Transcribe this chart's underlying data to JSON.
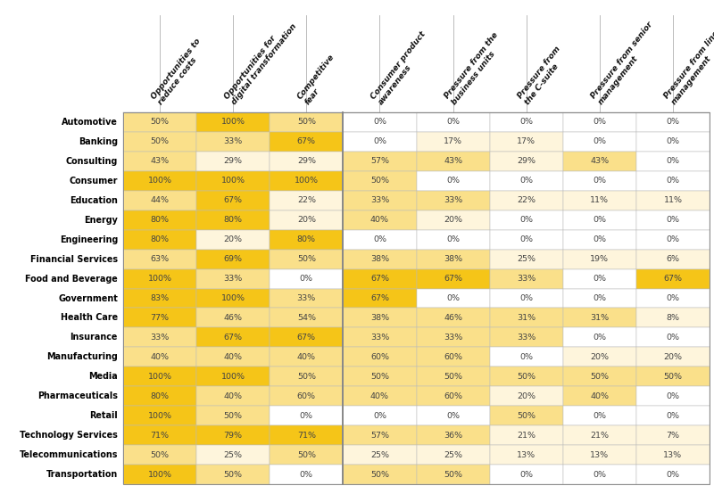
{
  "rows": [
    "Automotive",
    "Banking",
    "Consulting",
    "Consumer",
    "Education",
    "Energy",
    "Engineering",
    "Financial Services",
    "Food and Beverage",
    "Government",
    "Health Care",
    "Insurance",
    "Manufacturing",
    "Media",
    "Pharmaceuticals",
    "Retail",
    "Technology Services",
    "Telecommunications",
    "Transportation"
  ],
  "columns": [
    "Opportunities to\nreduce costs",
    "Opportunities for\ndigital transformation",
    "Competitive\nfear",
    "Consumer product\nawareness",
    "Pressure from the\nbusiness units",
    "Pressure from\nthe C-suite",
    "Pressure from senior\nmanagement",
    "Pressure from line\nmanagement"
  ],
  "values": [
    [
      50,
      100,
      50,
      0,
      0,
      0,
      0,
      0
    ],
    [
      50,
      33,
      67,
      0,
      17,
      17,
      0,
      0
    ],
    [
      43,
      29,
      29,
      57,
      43,
      29,
      43,
      0
    ],
    [
      100,
      100,
      100,
      50,
      0,
      0,
      0,
      0
    ],
    [
      44,
      67,
      22,
      33,
      33,
      22,
      11,
      11
    ],
    [
      80,
      80,
      20,
      40,
      20,
      0,
      0,
      0
    ],
    [
      80,
      20,
      80,
      0,
      0,
      0,
      0,
      0
    ],
    [
      63,
      69,
      50,
      38,
      38,
      25,
      19,
      6
    ],
    [
      100,
      33,
      0,
      67,
      67,
      33,
      0,
      67
    ],
    [
      83,
      100,
      33,
      67,
      0,
      0,
      0,
      0
    ],
    [
      77,
      46,
      54,
      38,
      46,
      31,
      31,
      8
    ],
    [
      33,
      67,
      67,
      33,
      33,
      33,
      0,
      0
    ],
    [
      40,
      40,
      40,
      60,
      60,
      0,
      20,
      20
    ],
    [
      100,
      100,
      50,
      50,
      50,
      50,
      50,
      50
    ],
    [
      80,
      40,
      60,
      40,
      60,
      20,
      40,
      0
    ],
    [
      100,
      50,
      0,
      0,
      0,
      50,
      0,
      0
    ],
    [
      71,
      79,
      71,
      57,
      36,
      21,
      21,
      7
    ],
    [
      50,
      25,
      50,
      25,
      25,
      13,
      13,
      13
    ],
    [
      100,
      50,
      0,
      50,
      50,
      0,
      0,
      0
    ]
  ],
  "high_threshold": 67,
  "mid_threshold": 30,
  "color_high": "#F5C518",
  "color_mid": "#FAE08A",
  "color_low": "#FEF5DC",
  "color_zero": "#FFFFFF",
  "border_color": "#BBBBBB",
  "sep_color": "#888888",
  "label_color": "#000000",
  "val_color": "#444444",
  "header_color": "#111111",
  "fig_width": 8.0,
  "fig_height": 5.45,
  "dpi": 100
}
